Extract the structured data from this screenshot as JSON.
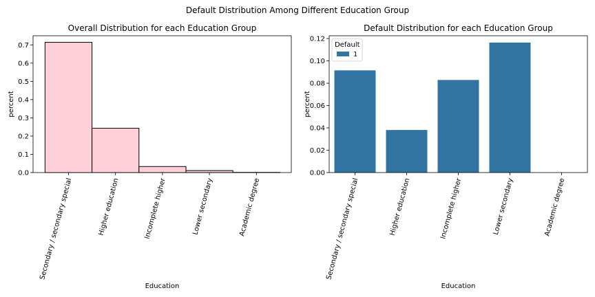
{
  "suptitle": "Default Distribution Among Different Education Group",
  "chart_data": [
    {
      "type": "bar",
      "title": "Overall Distribution for each Education Group",
      "xlabel": "Education",
      "ylabel": "percent",
      "categories": [
        "Secondary / secondary special",
        "Higher education",
        "Incomplete higher",
        "Lower secondary",
        "Academic degree"
      ],
      "values": [
        0.714,
        0.243,
        0.033,
        0.011,
        0.001
      ],
      "ylim": [
        0,
        0.75
      ],
      "yticks": [
        "0.0",
        "0.1",
        "0.2",
        "0.3",
        "0.4",
        "0.5",
        "0.6",
        "0.7"
      ],
      "bar_color": "#ffd0d8",
      "edge_color": "#000000",
      "grid": false
    },
    {
      "type": "bar",
      "title": "Default Distribution for each Education Group",
      "xlabel": "Education",
      "ylabel": "percent",
      "categories": [
        "Secondary / secondary special",
        "Higher education",
        "Incomplete higher",
        "Lower secondary",
        "Academic degree"
      ],
      "series": [
        {
          "name": "1",
          "values": [
            0.0915,
            0.0381,
            0.0829,
            0.1164,
            0.0
          ]
        }
      ],
      "ylim": [
        0,
        0.1225
      ],
      "yticks": [
        "0.00",
        "0.02",
        "0.04",
        "0.06",
        "0.08",
        "0.10",
        "0.12"
      ],
      "legend": {
        "title": "Default",
        "position": "top-left"
      },
      "bar_color": "#3274a1",
      "grid": false
    }
  ]
}
